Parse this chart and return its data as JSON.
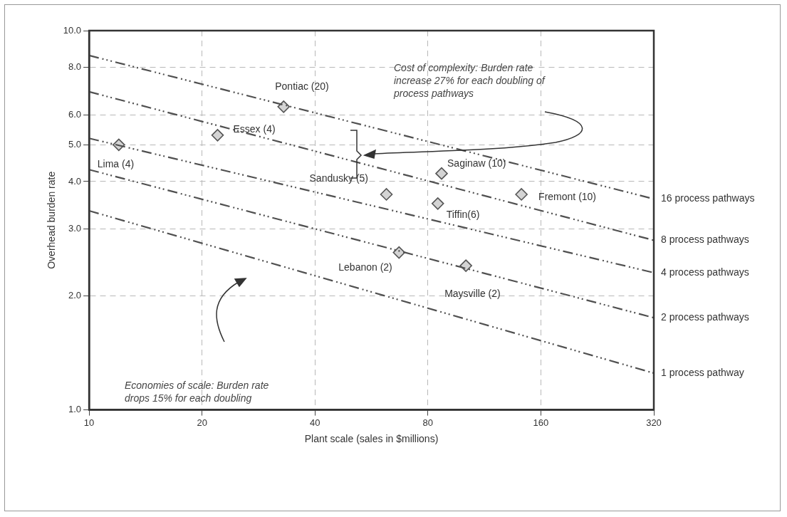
{
  "chart_data": {
    "type": "scatter",
    "xlabel": "Plant scale (sales in $millions)",
    "ylabel": "Overhead burden rate",
    "log": "xy",
    "xlim": [
      10,
      320
    ],
    "xticks": [
      10,
      20,
      40,
      80,
      160,
      320
    ],
    "ylim": [
      1,
      10
    ],
    "yticks": [
      {
        "value": 1,
        "label": "1.0"
      },
      {
        "value": 2,
        "label": "2.0"
      },
      {
        "value": 3,
        "label": "3.0"
      },
      {
        "value": 4,
        "label": "4.0"
      },
      {
        "value": 5,
        "label": "5.0"
      },
      {
        "value": 6,
        "label": "6.0"
      },
      {
        "value": 8,
        "label": "8.0"
      },
      {
        "value": 10,
        "label": "10.0"
      }
    ],
    "grid": true,
    "legend": false,
    "series": [
      {
        "type": "line",
        "name": "16 process pathways",
        "color": "#505050",
        "line_style": "dashed",
        "marker": "none",
        "x": [
          10,
          320
        ],
        "values": [
          8.6,
          3.6
        ]
      },
      {
        "type": "line",
        "name": "8 process pathways",
        "color": "#505050",
        "line_style": "dashed",
        "marker": "none",
        "x": [
          10,
          320
        ],
        "values": [
          6.9,
          2.8
        ]
      },
      {
        "type": "line",
        "name": "4 process pathways",
        "color": "#505050",
        "line_style": "dashed",
        "marker": "none",
        "x": [
          10,
          320
        ],
        "values": [
          5.2,
          2.3
        ]
      },
      {
        "type": "line",
        "name": "2 process pathways",
        "color": "#505050",
        "line_style": "dashed",
        "marker": "none",
        "x": [
          10,
          320
        ],
        "values": [
          4.3,
          1.75
        ]
      },
      {
        "type": "line",
        "name": "1 process pathway",
        "color": "#505050",
        "line_style": "dashed",
        "marker": "none",
        "x": [
          10,
          320
        ],
        "values": [
          3.35,
          1.25
        ]
      },
      {
        "type": "scatter",
        "color": "#555555",
        "marker": "diamond",
        "x": [
          12,
          22,
          33,
          87,
          62,
          85,
          142,
          67,
          101
        ],
        "values": [
          5.0,
          5.3,
          6.3,
          4.2,
          3.7,
          3.5,
          3.7,
          2.6,
          2.4
        ]
      }
    ],
    "annotations": [
      {
        "text": "Lima (4)",
        "x": 12,
        "y": 5.0
      },
      {
        "text": "Essex (4)",
        "x": 22,
        "y": 5.3
      },
      {
        "text": "Pontiac (20)",
        "x": 33,
        "y": 6.3
      },
      {
        "text": "Saginaw (10)",
        "x": 87,
        "y": 4.2
      },
      {
        "text": "Sandusky (5)",
        "x": 62,
        "y": 3.7
      },
      {
        "text": "Tiffin(6)",
        "x": 85,
        "y": 3.5
      },
      {
        "text": "Fremont (10)",
        "x": 142,
        "y": 3.7
      },
      {
        "text": "Lebanon (2)",
        "x": 67,
        "y": 2.6
      },
      {
        "text": "Maysville (2)",
        "x": 101,
        "y": 2.4
      },
      "Cost of complexity: Burden rate increase 27% for each doubling of process pathways",
      "Economies of scale: Burden rate drops 15% for each doubling"
    ]
  }
}
